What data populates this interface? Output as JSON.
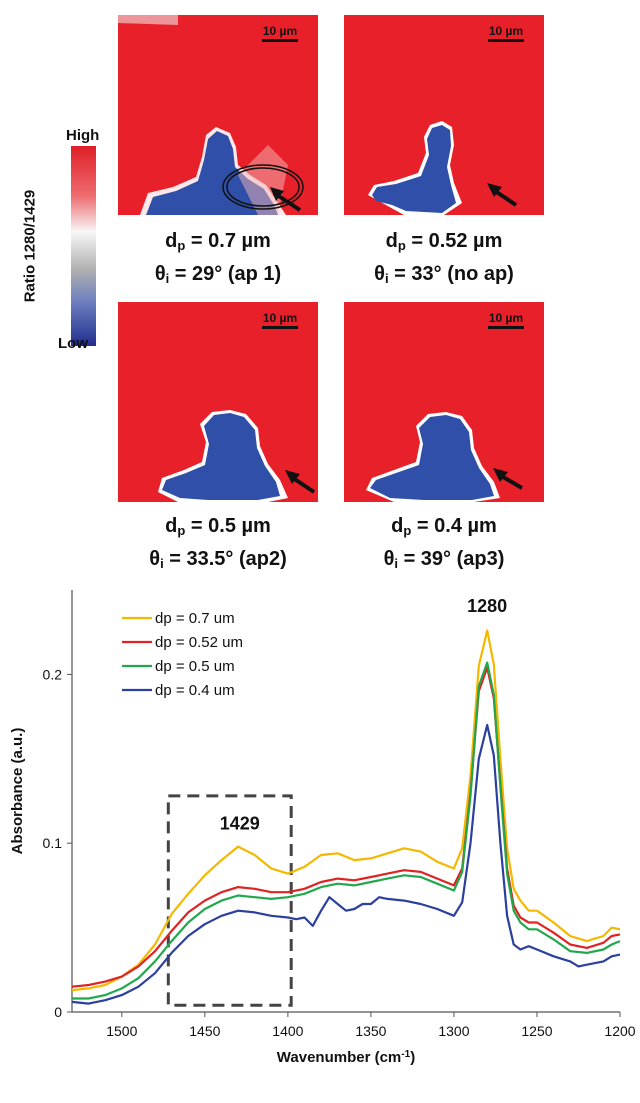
{
  "colorbar": {
    "title": "Ratio 1280/1429",
    "high_label": "High",
    "low_label": "Low",
    "colors": [
      "#e01f27",
      "#f7f7f7",
      "#1f2d8e"
    ]
  },
  "panels": [
    {
      "scale": "10 µm",
      "dp": "d",
      "dp_sub": "p",
      "dp_val": " = 0.7 µm",
      "theta": "θ",
      "theta_sub": "i",
      "theta_val": " = 29° (ap 1)"
    },
    {
      "scale": "10 µm",
      "dp": "d",
      "dp_sub": "p",
      "dp_val": " = 0.52 µm",
      "theta": "θ",
      "theta_sub": "i",
      "theta_val": " = 33° (no ap)"
    },
    {
      "scale": "10 µm",
      "dp": "d",
      "dp_sub": "p",
      "dp_val": " = 0.5 µm",
      "theta": "θ",
      "theta_sub": "i",
      "theta_val": " = 33.5° (ap2)"
    },
    {
      "scale": "10 µm",
      "dp": "d",
      "dp_sub": "p",
      "dp_val": " = 0.4 µm",
      "theta": "θ",
      "theta_sub": "i",
      "theta_val": " = 39° (ap3)"
    }
  ],
  "chart_data": {
    "type": "line",
    "xlabel": "Wavenumber (cm",
    "xlabel_sup": "-1",
    "xlabel_end": ")",
    "ylabel": "Absorbance (a.u.)",
    "xlim": [
      1530,
      1200
    ],
    "ylim": [
      0,
      0.25
    ],
    "x_reversed": true,
    "xticks": [
      1500,
      1450,
      1400,
      1350,
      1300,
      1250,
      1200
    ],
    "yticks": [
      0,
      0.1,
      0.2
    ],
    "ytick_labels": [
      "0",
      "0.1",
      "0.2"
    ],
    "grid": false,
    "legend_position": "top-left",
    "annotations": [
      {
        "text": "1280",
        "x": 1280,
        "y": 0.237
      },
      {
        "text": "1429",
        "x": 1429,
        "y": 0.108
      }
    ],
    "highlight_box": {
      "x_from": 1472,
      "x_to": 1398,
      "y_from": 0.004,
      "y_to": 0.128
    },
    "series": [
      {
        "name": "dp = 0.7 um",
        "color": "#f5b800",
        "x": [
          1530,
          1520,
          1510,
          1500,
          1490,
          1480,
          1470,
          1460,
          1450,
          1440,
          1430,
          1420,
          1410,
          1400,
          1390,
          1380,
          1370,
          1360,
          1350,
          1340,
          1330,
          1320,
          1310,
          1300,
          1295,
          1290,
          1285,
          1280,
          1276,
          1272,
          1268,
          1264,
          1260,
          1255,
          1250,
          1240,
          1230,
          1220,
          1210,
          1205,
          1200
        ],
        "y": [
          0.013,
          0.014,
          0.016,
          0.021,
          0.028,
          0.04,
          0.058,
          0.07,
          0.081,
          0.09,
          0.098,
          0.093,
          0.085,
          0.082,
          0.086,
          0.093,
          0.094,
          0.09,
          0.091,
          0.094,
          0.097,
          0.095,
          0.089,
          0.085,
          0.097,
          0.14,
          0.205,
          0.226,
          0.206,
          0.15,
          0.097,
          0.073,
          0.066,
          0.06,
          0.06,
          0.053,
          0.045,
          0.042,
          0.045,
          0.05,
          0.049
        ]
      },
      {
        "name": "dp = 0.52 um",
        "color": "#e02222",
        "x": [
          1530,
          1520,
          1510,
          1500,
          1490,
          1480,
          1470,
          1460,
          1450,
          1440,
          1430,
          1420,
          1410,
          1400,
          1390,
          1380,
          1370,
          1360,
          1350,
          1340,
          1330,
          1320,
          1310,
          1300,
          1295,
          1290,
          1285,
          1280,
          1276,
          1272,
          1268,
          1264,
          1260,
          1255,
          1250,
          1240,
          1230,
          1220,
          1210,
          1205,
          1200
        ],
        "y": [
          0.015,
          0.016,
          0.018,
          0.021,
          0.027,
          0.036,
          0.048,
          0.059,
          0.066,
          0.071,
          0.074,
          0.073,
          0.071,
          0.071,
          0.073,
          0.077,
          0.079,
          0.078,
          0.08,
          0.082,
          0.084,
          0.083,
          0.079,
          0.075,
          0.085,
          0.13,
          0.19,
          0.204,
          0.186,
          0.135,
          0.085,
          0.063,
          0.056,
          0.053,
          0.053,
          0.047,
          0.04,
          0.038,
          0.041,
          0.045,
          0.046
        ]
      },
      {
        "name": "dp = 0.5 um",
        "color": "#22a84c",
        "x": [
          1530,
          1520,
          1510,
          1500,
          1490,
          1480,
          1470,
          1460,
          1450,
          1440,
          1430,
          1420,
          1410,
          1400,
          1390,
          1380,
          1370,
          1360,
          1350,
          1340,
          1330,
          1320,
          1310,
          1300,
          1295,
          1290,
          1285,
          1280,
          1276,
          1272,
          1268,
          1264,
          1260,
          1255,
          1250,
          1240,
          1230,
          1220,
          1210,
          1205,
          1200
        ],
        "y": [
          0.008,
          0.008,
          0.01,
          0.014,
          0.02,
          0.03,
          0.042,
          0.053,
          0.061,
          0.066,
          0.069,
          0.068,
          0.067,
          0.068,
          0.07,
          0.074,
          0.076,
          0.075,
          0.077,
          0.079,
          0.081,
          0.08,
          0.076,
          0.072,
          0.083,
          0.128,
          0.193,
          0.207,
          0.188,
          0.133,
          0.082,
          0.06,
          0.053,
          0.049,
          0.049,
          0.043,
          0.036,
          0.035,
          0.037,
          0.04,
          0.042
        ]
      },
      {
        "name": "dp = 0.4 um",
        "color": "#2b3f9e",
        "x": [
          1530,
          1520,
          1510,
          1500,
          1490,
          1480,
          1470,
          1460,
          1450,
          1440,
          1430,
          1420,
          1410,
          1400,
          1395,
          1390,
          1385,
          1380,
          1375,
          1370,
          1365,
          1360,
          1355,
          1350,
          1345,
          1340,
          1330,
          1320,
          1310,
          1300,
          1295,
          1290,
          1285,
          1280,
          1276,
          1272,
          1268,
          1264,
          1260,
          1255,
          1250,
          1240,
          1230,
          1225,
          1220,
          1210,
          1205,
          1200
        ],
        "y": [
          0.006,
          0.005,
          0.007,
          0.01,
          0.015,
          0.023,
          0.035,
          0.045,
          0.052,
          0.057,
          0.06,
          0.059,
          0.057,
          0.056,
          0.055,
          0.056,
          0.051,
          0.06,
          0.068,
          0.064,
          0.06,
          0.061,
          0.064,
          0.064,
          0.068,
          0.067,
          0.066,
          0.064,
          0.061,
          0.057,
          0.065,
          0.1,
          0.15,
          0.17,
          0.152,
          0.1,
          0.057,
          0.04,
          0.037,
          0.039,
          0.037,
          0.033,
          0.03,
          0.027,
          0.028,
          0.03,
          0.033,
          0.034
        ]
      }
    ]
  }
}
